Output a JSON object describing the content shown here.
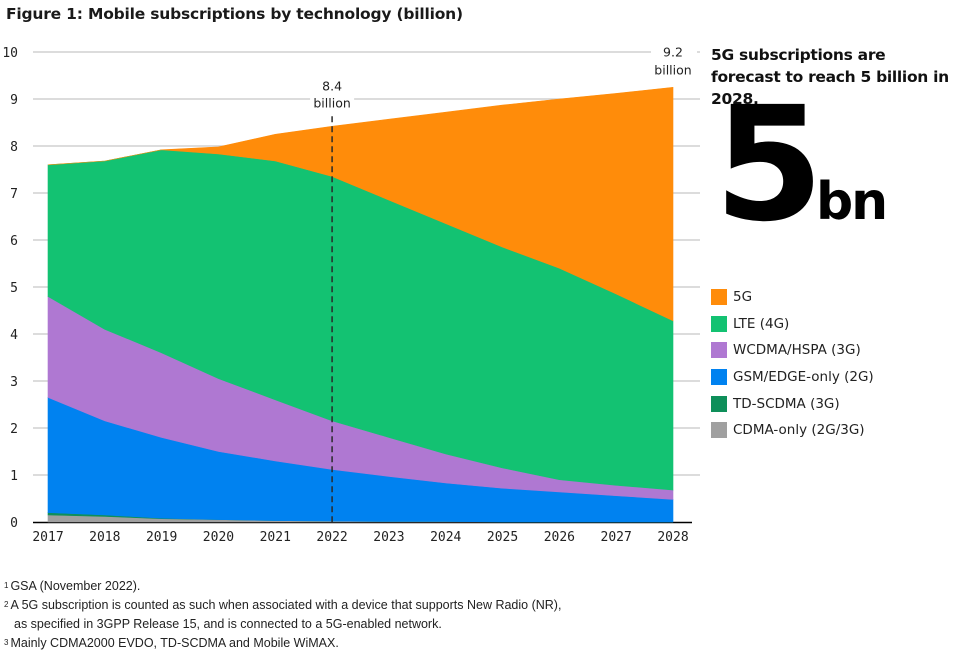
{
  "title": "Figure 1: Mobile subscriptions by technology (billion)",
  "sidebar": {
    "headline": "5G subscriptions are forecast to reach 5 billion in 2028.",
    "big_number": "5",
    "big_unit": "bn"
  },
  "footnotes": [
    {
      "mark": "1",
      "text": "GSA (November 2022)."
    },
    {
      "mark": "2",
      "text": "A 5G subscription is counted as such when associated with a device that supports New Radio (NR),"
    },
    {
      "mark": "",
      "text": "as specified in 3GPP Release 15, and is connected to a 5G-enabled network."
    },
    {
      "mark": "3",
      "text": "Mainly CDMA2000 EVDO, TD-SCDMA and Mobile WiMAX."
    }
  ],
  "chart_data": {
    "type": "area",
    "stacked": true,
    "title": "Figure 1: Mobile subscriptions by technology (billion)",
    "xlabel": "",
    "ylabel": "",
    "x": [
      2017,
      2018,
      2019,
      2020,
      2021,
      2022,
      2023,
      2024,
      2025,
      2026,
      2027,
      2028
    ],
    "ylim": [
      0,
      10
    ],
    "yticks": [
      0,
      1,
      2,
      3,
      4,
      5,
      6,
      7,
      8,
      9,
      10
    ],
    "grid": true,
    "legend_position": "right",
    "series": [
      {
        "name": "CDMA-only (2G/3G)",
        "color": "#a0a0a0",
        "values": [
          0.15,
          0.12,
          0.07,
          0.05,
          0.03,
          0.02,
          0.01,
          0.01,
          0.0,
          0.0,
          0.0,
          0.0
        ]
      },
      {
        "name": "TD-SCDMA (3G)",
        "color": "#0e8f5a",
        "values": [
          0.05,
          0.03,
          0.01,
          0.0,
          0.0,
          0.0,
          0.0,
          0.0,
          0.0,
          0.0,
          0.0,
          0.0
        ]
      },
      {
        "name": "GSM/EDGE-only (2G)",
        "color": "#0082f0",
        "values": [
          2.45,
          2.0,
          1.72,
          1.45,
          1.27,
          1.1,
          0.96,
          0.82,
          0.72,
          0.64,
          0.56,
          0.48
        ]
      },
      {
        "name": "WCDMA/HSPA (3G)",
        "color": "#af78d2",
        "values": [
          2.15,
          1.95,
          1.8,
          1.55,
          1.3,
          1.03,
          0.83,
          0.62,
          0.43,
          0.26,
          0.22,
          0.2
        ]
      },
      {
        "name": "LTE (4G)",
        "color": "#13c272",
        "values": [
          2.8,
          3.58,
          4.32,
          4.78,
          5.08,
          5.2,
          5.05,
          4.9,
          4.7,
          4.5,
          4.07,
          3.6
        ]
      },
      {
        "name": "5G",
        "color": "#ff8c0a",
        "values": [
          0.0,
          0.0,
          0.0,
          0.15,
          0.57,
          1.07,
          1.72,
          2.37,
          3.02,
          3.6,
          4.27,
          4.97
        ]
      }
    ],
    "totals": [
      7.6,
      7.68,
      7.92,
      7.98,
      8.25,
      8.42,
      8.57,
      8.72,
      8.87,
      9.0,
      9.12,
      9.25
    ],
    "legend_order": [
      "5G",
      "LTE (4G)",
      "WCDMA/HSPA (3G)",
      "GSM/EDGE-only (2G)",
      "TD-SCDMA (3G)",
      "CDMA-only (2G/3G)"
    ],
    "annotations": [
      {
        "x": 2022,
        "value": "8.4",
        "unit": "billion",
        "dashed_line": true
      },
      {
        "x": 2028,
        "value": "9.2",
        "unit": "billion",
        "dashed_line": false
      }
    ]
  }
}
